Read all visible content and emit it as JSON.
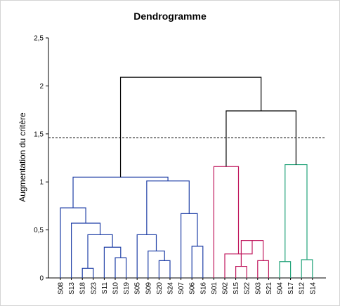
{
  "chart_data": {
    "type": "dendrogram",
    "title": "Dendrogramme",
    "ylabel": "Augmentation du critère",
    "xlabel": "",
    "ylim": [
      0,
      2.5
    ],
    "yticks": [
      {
        "value": 0,
        "label": "0"
      },
      {
        "value": 0.5,
        "label": "0,5"
      },
      {
        "value": 1,
        "label": "1"
      },
      {
        "value": 1.5,
        "label": "1,5"
      },
      {
        "value": 2,
        "label": "2"
      },
      {
        "value": 2.5,
        "label": "2,5"
      }
    ],
    "leaves": [
      "S08",
      "S13",
      "S18",
      "S23",
      "S11",
      "S10",
      "S19",
      "S05",
      "S09",
      "S20",
      "S24",
      "S07",
      "S06",
      "S16",
      "S01",
      "S02",
      "S15",
      "S22",
      "S03",
      "S21",
      "S04",
      "S17",
      "S12",
      "S14"
    ],
    "cut_height": 1.46,
    "cluster_colors": {
      "c1": "#1f3fa6",
      "c2": "#c0175d",
      "c3": "#23a37a",
      "root": "#000000"
    },
    "merges": [
      {
        "id": "m1",
        "left": "S18",
        "right": "S23",
        "height": 0.1,
        "color": "c1"
      },
      {
        "id": "m2",
        "left": "S10",
        "right": "S19",
        "height": 0.21,
        "color": "c1"
      },
      {
        "id": "m3",
        "left": "S11",
        "right": "m2",
        "height": 0.32,
        "color": "c1"
      },
      {
        "id": "m4",
        "left": "m1",
        "right": "m3",
        "height": 0.45,
        "color": "c1"
      },
      {
        "id": "m5",
        "left": "S13",
        "right": "m4",
        "height": 0.57,
        "color": "c1"
      },
      {
        "id": "m6",
        "left": "S08",
        "right": "m5",
        "height": 0.73,
        "color": "c1"
      },
      {
        "id": "m7",
        "left": "S20",
        "right": "S24",
        "height": 0.18,
        "color": "c1"
      },
      {
        "id": "m8",
        "left": "S09",
        "right": "m7",
        "height": 0.28,
        "color": "c1"
      },
      {
        "id": "m9",
        "left": "S05",
        "right": "m8",
        "height": 0.45,
        "color": "c1"
      },
      {
        "id": "m10",
        "left": "S06",
        "right": "S16",
        "height": 0.33,
        "color": "c1"
      },
      {
        "id": "m11",
        "left": "S07",
        "right": "m10",
        "height": 0.67,
        "color": "c1"
      },
      {
        "id": "m12",
        "left": "m9",
        "right": "m11",
        "height": 1.01,
        "color": "c1"
      },
      {
        "id": "m13",
        "left": "m6",
        "right": "m12",
        "height": 1.05,
        "color": "c1"
      },
      {
        "id": "m14",
        "left": "S15",
        "right": "S22",
        "height": 0.12,
        "color": "c2"
      },
      {
        "id": "m15",
        "left": "S03",
        "right": "S21",
        "height": 0.18,
        "color": "c2"
      },
      {
        "id": "m16",
        "left": "m14",
        "right": "m15",
        "height": 0.39,
        "color": "c2"
      },
      {
        "id": "m17",
        "left": "S02",
        "right": "m16",
        "height": 0.25,
        "color": "c2"
      },
      {
        "id": "m18",
        "left": "S01",
        "right": "m17",
        "height": 1.16,
        "color": "c2"
      },
      {
        "id": "m19",
        "left": "S04",
        "right": "S17",
        "height": 0.17,
        "color": "c3"
      },
      {
        "id": "m20",
        "left": "S12",
        "right": "S14",
        "height": 0.19,
        "color": "c3"
      },
      {
        "id": "m21",
        "left": "m19",
        "right": "m20",
        "height": 1.18,
        "color": "c3"
      },
      {
        "id": "m22",
        "left": "m18",
        "right": "m21",
        "height": 1.74,
        "color": "root"
      },
      {
        "id": "m23",
        "left": "m13",
        "right": "m22",
        "height": 2.09,
        "color": "root"
      }
    ]
  }
}
